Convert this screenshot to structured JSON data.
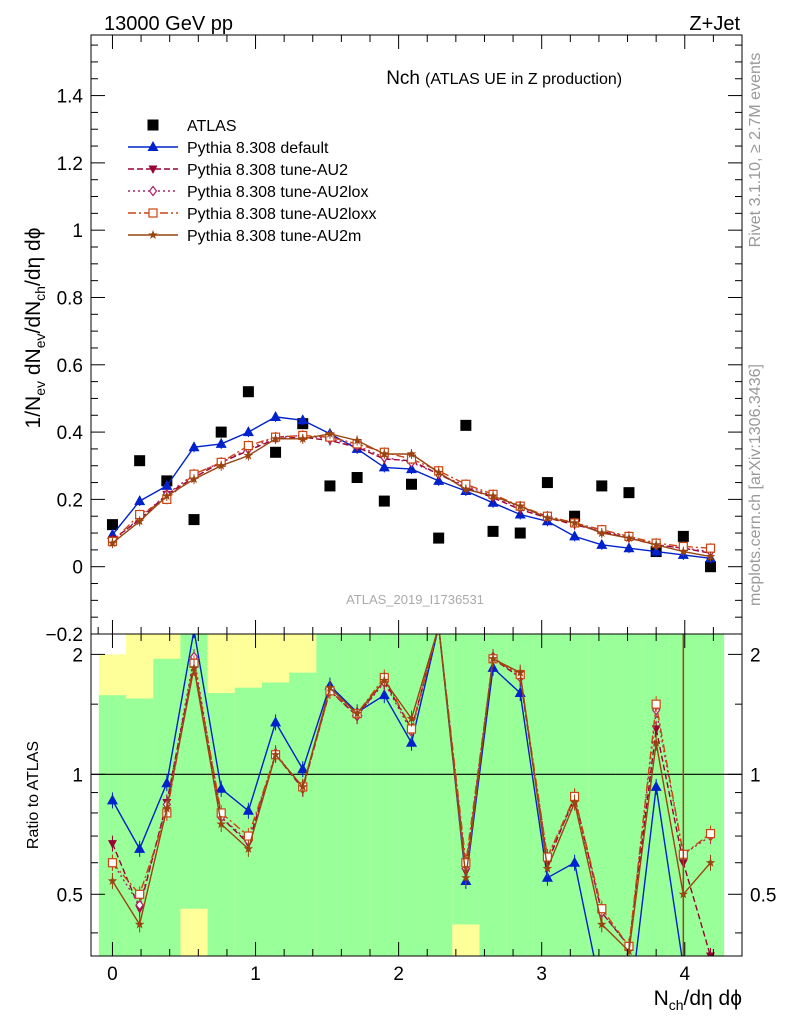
{
  "header": {
    "energy": "13000 GeV pp",
    "process": "Z+Jet"
  },
  "side": {
    "rivet": "Rivet 3.1.10, ≥ 2.7M events",
    "mcplots": "mcplots.cern.ch [arXiv:1306.3436]"
  },
  "chart_data": [
    {
      "type": "scatter",
      "title": "Nch",
      "subtitle": "(ATLAS UE in Z production)",
      "watermark": "ATLAS_2019_I1736531",
      "xlabel": "N_ch/dη dϕ",
      "ylabel": "1/N_ev dN_ev/dN_ch/dη dϕ",
      "xlim": [
        -0.15,
        4.4
      ],
      "ylim": [
        -0.2,
        1.58
      ],
      "yticks": [
        -0.2,
        0,
        0.2,
        0.4,
        0.6,
        0.8,
        1,
        1.2,
        1.4
      ],
      "ytick_labels": [
        "−0.2",
        "0",
        "0.2",
        "0.4",
        "0.6",
        "0.8",
        "1",
        "1.2",
        "1.4"
      ],
      "xticks": [
        0,
        1,
        2,
        3,
        4
      ],
      "xtick_labels": [
        "0",
        "1",
        "2",
        "3",
        "4"
      ],
      "legend_position": "top-left",
      "x": [
        0,
        0.19,
        0.38,
        0.57,
        0.76,
        0.95,
        1.14,
        1.33,
        1.52,
        1.71,
        1.9,
        2.09,
        2.28,
        2.47,
        2.66,
        2.85,
        3.04,
        3.23,
        3.42,
        3.61,
        3.8,
        3.99,
        4.18
      ],
      "series": [
        {
          "name": "ATLAS",
          "color": "#000000",
          "marker": "square",
          "dash": "none",
          "values": [
            0.125,
            0.315,
            0.255,
            0.14,
            0.4,
            0.52,
            0.34,
            0.425,
            0.24,
            0.265,
            0.195,
            0.245,
            0.085,
            0.42,
            0.105,
            0.1,
            0.25,
            0.15,
            0.24,
            0.22,
            0.045,
            0.09,
            0.0
          ]
        },
        {
          "name": "Pythia 8.308 default",
          "color": "#0022cc",
          "marker": "triangle-up",
          "dash": "none",
          "values": [
            0.095,
            0.195,
            0.24,
            0.355,
            0.365,
            0.4,
            0.445,
            0.435,
            0.395,
            0.35,
            0.295,
            0.29,
            0.255,
            0.225,
            0.19,
            0.155,
            0.135,
            0.09,
            0.065,
            0.055,
            0.045,
            0.035,
            0.025
          ]
        },
        {
          "name": "Pythia 8.308 tune-AU2",
          "color": "#990033",
          "marker": "triangle-down",
          "dash": "6,3",
          "values": [
            0.08,
            0.14,
            0.215,
            0.265,
            0.31,
            0.345,
            0.38,
            0.385,
            0.375,
            0.355,
            0.32,
            0.315,
            0.275,
            0.235,
            0.205,
            0.17,
            0.145,
            0.125,
            0.105,
            0.085,
            0.065,
            0.055,
            0.04
          ]
        },
        {
          "name": "Pythia 8.308 tune-AU2lox",
          "color": "#aa2266",
          "marker": "diamond",
          "dash": "2,3",
          "values": [
            0.075,
            0.145,
            0.215,
            0.275,
            0.31,
            0.35,
            0.385,
            0.39,
            0.38,
            0.36,
            0.325,
            0.31,
            0.275,
            0.24,
            0.21,
            0.175,
            0.15,
            0.13,
            0.105,
            0.09,
            0.065,
            0.055,
            0.045
          ]
        },
        {
          "name": "Pythia 8.308 tune-AU2loxx",
          "color": "#cc4411",
          "marker": "square-open",
          "dash": "8,3,2,3",
          "values": [
            0.075,
            0.155,
            0.2,
            0.275,
            0.31,
            0.36,
            0.385,
            0.39,
            0.385,
            0.365,
            0.34,
            0.32,
            0.285,
            0.245,
            0.215,
            0.18,
            0.15,
            0.13,
            0.11,
            0.09,
            0.07,
            0.06,
            0.055
          ]
        },
        {
          "name": "Pythia 8.308 tune-AU2m",
          "color": "#994411",
          "marker": "star",
          "dash": "none",
          "values": [
            0.07,
            0.135,
            0.21,
            0.26,
            0.3,
            0.33,
            0.38,
            0.38,
            0.395,
            0.375,
            0.335,
            0.335,
            0.28,
            0.23,
            0.21,
            0.18,
            0.145,
            0.13,
            0.1,
            0.085,
            0.065,
            0.045,
            0.03
          ]
        }
      ]
    },
    {
      "type": "line",
      "ylabel": "Ratio to ATLAS",
      "ylim": [
        0.35,
        2.25
      ],
      "yticks": [
        0.5,
        1,
        2
      ],
      "ytick_labels": [
        "0.5",
        "1",
        "2"
      ],
      "reference": 1,
      "band_colors": {
        "inner": "#99ff99",
        "outer": "#ffff99"
      },
      "bands": {
        "green_lo": [
          0.35,
          0.35,
          0.35,
          0.46,
          0.35,
          0.35,
          0.35,
          0.35,
          0.35,
          0.35,
          0.35,
          0.35,
          0.35,
          0.42,
          0.35,
          0.35,
          0.35,
          0.35,
          0.35,
          0.35,
          0.35,
          0.35,
          0.35
        ],
        "green_hi": [
          1.58,
          1.55,
          1.95,
          2.25,
          1.6,
          1.65,
          1.7,
          1.8,
          2.25,
          2.25,
          2.25,
          2.25,
          2.25,
          2.25,
          2.25,
          2.25,
          2.25,
          2.25,
          2.25,
          2.25,
          2.25,
          2.25,
          2.25
        ],
        "yellow_lo": [
          0.35,
          0.35,
          0.38,
          0.35,
          0.35,
          0.35,
          0.35,
          0.35,
          0.35,
          0.35,
          0.35,
          0.35,
          0.35,
          0.35,
          0.35,
          0.35,
          0.35,
          0.35,
          0.35,
          0.35,
          0.35,
          0.35,
          0.35
        ],
        "yellow_hi": [
          2.0,
          2.25,
          2.25,
          2.25,
          2.25,
          2.25,
          2.25,
          2.25,
          2.25,
          2.25,
          2.25,
          2.25,
          2.25,
          2.25,
          2.25,
          2.25,
          2.25,
          2.25,
          2.25,
          2.25,
          2.25,
          2.25,
          2.25
        ]
      },
      "series": [
        {
          "name": "Pythia 8.308 default",
          "color": "#0022cc",
          "marker": "triangle-up",
          "dash": "none",
          "values": [
            0.86,
            0.65,
            0.95,
            2.3,
            0.92,
            0.81,
            1.35,
            1.03,
            1.67,
            1.43,
            1.58,
            1.2,
            2.35,
            0.54,
            1.85,
            1.6,
            0.55,
            0.6,
            0.28,
            0.25,
            0.93,
            0.33,
            0.2
          ]
        },
        {
          "name": "Pythia 8.308 tune-AU2",
          "color": "#990033",
          "marker": "triangle-down",
          "dash": "6,3",
          "values": [
            0.67,
            0.46,
            0.85,
            1.9,
            0.78,
            0.67,
            1.12,
            0.92,
            1.62,
            1.4,
            1.72,
            1.3,
            2.35,
            0.57,
            1.95,
            1.75,
            0.6,
            0.88,
            0.45,
            0.37,
            1.3,
            0.6,
            0.35
          ]
        },
        {
          "name": "Pythia 8.308 tune-AU2lox",
          "color": "#aa2266",
          "marker": "diamond",
          "dash": "2,3",
          "values": [
            0.6,
            0.47,
            0.84,
            1.97,
            0.78,
            0.68,
            1.13,
            0.92,
            1.62,
            1.4,
            1.7,
            1.28,
            2.35,
            0.58,
            1.97,
            1.75,
            0.62,
            0.86,
            0.45,
            0.37,
            1.45,
            0.63,
            0.7
          ]
        },
        {
          "name": "Pythia 8.308 tune-AU2loxx",
          "color": "#cc4411",
          "marker": "square-open",
          "dash": "8,3,2,3",
          "values": [
            0.6,
            0.5,
            0.8,
            1.9,
            0.8,
            0.7,
            1.12,
            0.93,
            1.62,
            1.42,
            1.75,
            1.3,
            2.35,
            0.6,
            1.95,
            1.78,
            0.62,
            0.88,
            0.46,
            0.37,
            1.5,
            0.63,
            0.71
          ]
        },
        {
          "name": "Pythia 8.308 tune-AU2m",
          "color": "#994411",
          "marker": "star",
          "dash": "none",
          "values": [
            0.54,
            0.42,
            0.82,
            1.85,
            0.75,
            0.65,
            1.12,
            0.93,
            1.65,
            1.42,
            1.72,
            1.38,
            2.35,
            0.55,
            1.95,
            1.8,
            0.58,
            0.85,
            0.42,
            0.36,
            1.2,
            0.5,
            0.6
          ]
        }
      ]
    }
  ]
}
